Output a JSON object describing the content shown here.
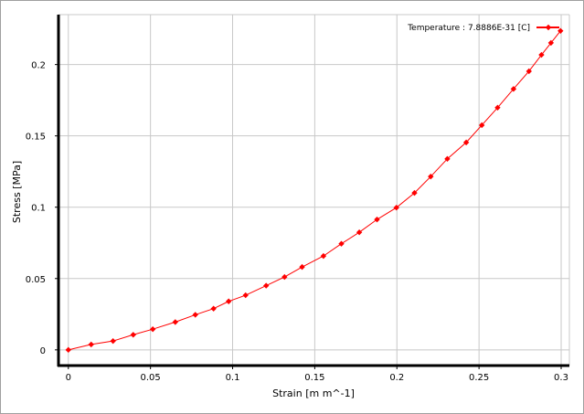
{
  "chart_data": {
    "type": "line",
    "xlabel": "Strain  [m m^-1]",
    "ylabel": "Stress  [MPa]",
    "xlim": [
      -0.006,
      0.305
    ],
    "ylim": [
      -0.011,
      0.235
    ],
    "xticks": [
      0,
      0.05,
      0.1,
      0.15,
      0.2,
      0.25,
      0.3
    ],
    "xtick_labels": [
      "0",
      "0.05",
      "0.1",
      "0.15",
      "0.2",
      "0.25",
      "0.3"
    ],
    "yticks": [
      0,
      0.05,
      0.1,
      0.15,
      0.2
    ],
    "ytick_labels": [
      "0",
      "0.05",
      "0.1",
      "0.15",
      "0.2"
    ],
    "grid": true,
    "legend_position": "top-right",
    "series": [
      {
        "name": "Temperature : 7.8886E-31 [C]",
        "color": "#ff0000",
        "marker": "diamond",
        "x": [
          0,
          0.0139,
          0.0272,
          0.0395,
          0.0514,
          0.0651,
          0.0773,
          0.0884,
          0.0976,
          0.1079,
          0.1204,
          0.1316,
          0.1423,
          0.1553,
          0.1662,
          0.1771,
          0.1879,
          0.1997,
          0.2107,
          0.2206,
          0.2307,
          0.2422,
          0.2517,
          0.2613,
          0.271,
          0.2804,
          0.288,
          0.2938,
          0.2996
        ],
        "y": [
          0,
          0.0038,
          0.0062,
          0.0106,
          0.0145,
          0.0195,
          0.0246,
          0.0289,
          0.034,
          0.0383,
          0.045,
          0.0511,
          0.0581,
          0.0658,
          0.0744,
          0.0824,
          0.0914,
          0.0997,
          0.11,
          0.1215,
          0.1339,
          0.1454,
          0.1575,
          0.1698,
          0.1829,
          0.1953,
          0.2068,
          0.2152,
          0.2236
        ]
      }
    ]
  }
}
